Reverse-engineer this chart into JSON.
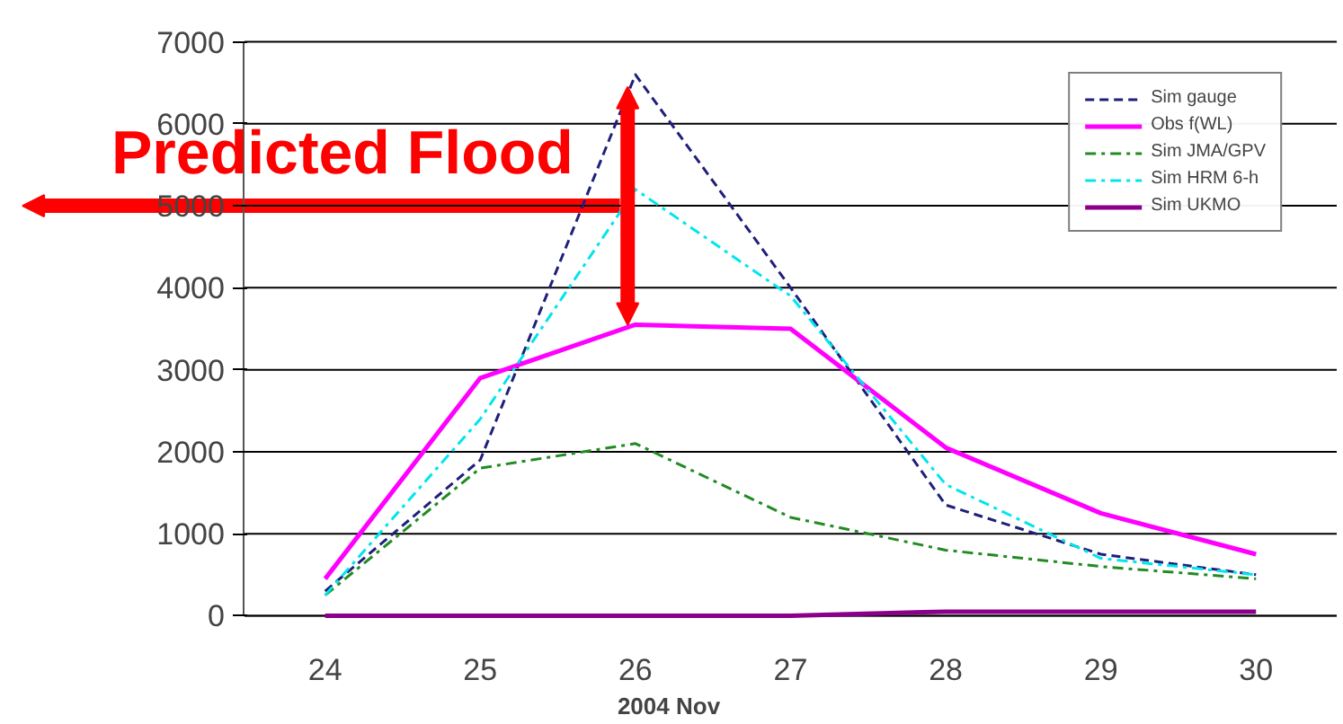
{
  "chart_data": {
    "type": "line",
    "xlabel": "2004 Nov",
    "categories": [
      "24",
      "25",
      "26",
      "27",
      "28",
      "29",
      "30"
    ],
    "series": [
      {
        "name": "Sim gauge",
        "color": "#1f1f7a",
        "line_style": "dashed",
        "values": [
          300,
          1900,
          6600,
          4000,
          1350,
          750,
          500
        ]
      },
      {
        "name": "Obs f(WL)",
        "color": "#ff00ff",
        "line_style": "solid",
        "values": [
          450,
          2900,
          3550,
          3500,
          2050,
          1250,
          750
        ]
      },
      {
        "name": "Sim JMA/GPV",
        "color": "#228b22",
        "line_style": "dashdot",
        "values": [
          250,
          1800,
          2100,
          1200,
          800,
          600,
          450
        ]
      },
      {
        "name": "Sim HRM 6-h",
        "color": "#00e5ee",
        "line_style": "dashdot",
        "values": [
          250,
          2400,
          5200,
          3900,
          1600,
          700,
          500
        ]
      },
      {
        "name": "Sim UKMO",
        "color": "#8b008b",
        "line_style": "solid",
        "values": [
          0,
          0,
          0,
          0,
          50,
          50,
          50
        ]
      }
    ],
    "ylim": [
      0,
      7000
    ],
    "yticks": [
      0,
      1000,
      2000,
      3000,
      4000,
      5000,
      6000,
      7000
    ],
    "grid": "y",
    "legend": "top right",
    "annotations": [
      {
        "text": "Predicted Flood",
        "x": "26",
        "y": 5000
      }
    ]
  }
}
